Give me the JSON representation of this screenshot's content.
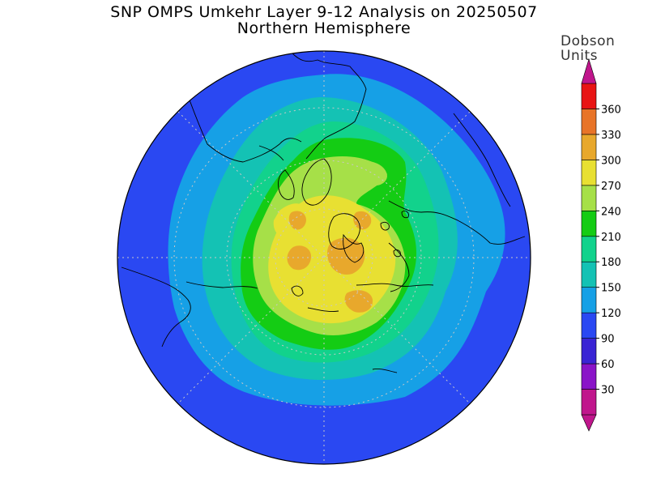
{
  "title": "SNP OMPS Umkehr Layer 9-12 Analysis on 20250507",
  "subtitle": "Northern Hemisphere",
  "legend": {
    "title_line1": "Dobson",
    "title_line2": "Units",
    "ticks": [
      "30",
      "60",
      "90",
      "120",
      "150",
      "180",
      "210",
      "240",
      "270",
      "300",
      "330",
      "360"
    ],
    "bands": [
      {
        "from": 0,
        "to": 30,
        "color": "#c0168c"
      },
      {
        "from": 30,
        "to": 60,
        "color": "#8a14c8"
      },
      {
        "from": 60,
        "to": 90,
        "color": "#3a24d4"
      },
      {
        "from": 90,
        "to": 120,
        "color": "#2a48f2"
      },
      {
        "from": 120,
        "to": 150,
        "color": "#16a0e6"
      },
      {
        "from": 150,
        "to": 180,
        "color": "#14c2b4"
      },
      {
        "from": 180,
        "to": 210,
        "color": "#12d28c"
      },
      {
        "from": 210,
        "to": 240,
        "color": "#14cc14"
      },
      {
        "from": 240,
        "to": 270,
        "color": "#a6e048"
      },
      {
        "from": 270,
        "to": 300,
        "color": "#e8e032"
      },
      {
        "from": 300,
        "to": 330,
        "color": "#e8a82c"
      },
      {
        "from": 330,
        "to": 360,
        "color": "#e87428"
      },
      {
        "from": 360,
        "to": 390,
        "color": "#e81414"
      }
    ],
    "over_color": "#c0168c"
  },
  "map": {
    "projection": "polar stereographic",
    "hemisphere": "Northern",
    "graticule": true
  }
}
